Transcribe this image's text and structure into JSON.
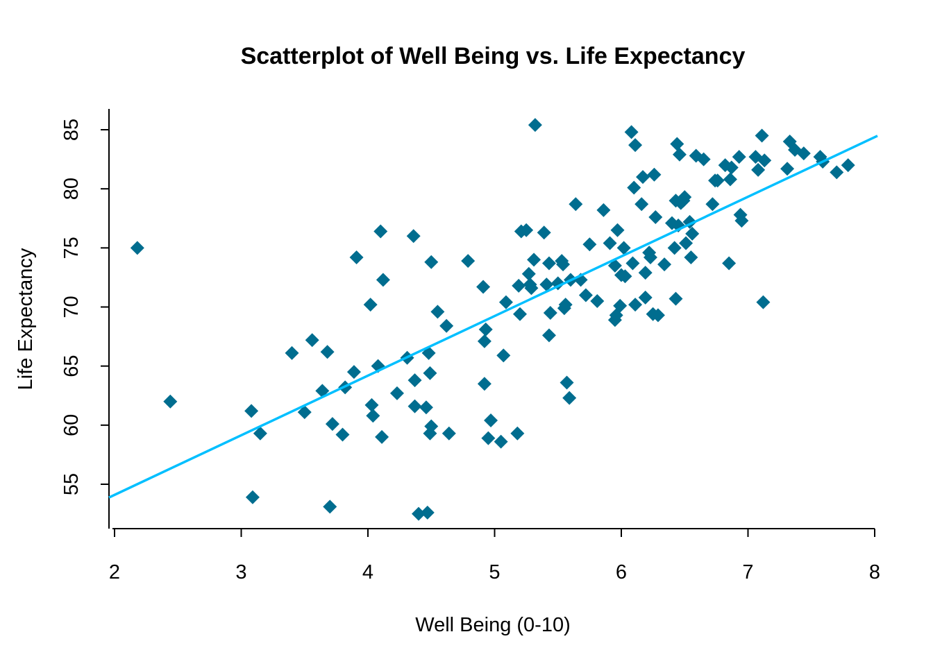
{
  "chart_data": {
    "type": "scatter",
    "title": "Scatterplot of Well Being vs. Life Expectancy",
    "xlabel": "Well Being (0-10)",
    "ylabel": "Life Expectancy",
    "xlim": [
      2,
      8
    ],
    "ylim": [
      51,
      87
    ],
    "xticks": [
      2,
      3,
      4,
      5,
      6,
      7,
      8
    ],
    "yticks": [
      55,
      60,
      65,
      70,
      75,
      80,
      85
    ],
    "grid": false,
    "point_color": "#006d8f",
    "line_color": "#00bfff",
    "regression_line": {
      "x": [
        2,
        8
      ],
      "y": [
        54.1,
        84.6
      ]
    },
    "points": [
      [
        2.18,
        75.0
      ],
      [
        2.44,
        62.0
      ],
      [
        3.08,
        61.2
      ],
      [
        3.09,
        53.9
      ],
      [
        3.15,
        59.3
      ],
      [
        3.4,
        66.1
      ],
      [
        3.5,
        61.1
      ],
      [
        3.56,
        67.2
      ],
      [
        3.64,
        62.9
      ],
      [
        3.68,
        66.2
      ],
      [
        3.7,
        53.1
      ],
      [
        3.72,
        60.1
      ],
      [
        3.8,
        59.2
      ],
      [
        3.82,
        63.2
      ],
      [
        3.89,
        64.5
      ],
      [
        3.91,
        74.2
      ],
      [
        4.02,
        70.2
      ],
      [
        4.03,
        61.7
      ],
      [
        4.04,
        60.8
      ],
      [
        4.08,
        65.0
      ],
      [
        4.1,
        76.4
      ],
      [
        4.11,
        59.0
      ],
      [
        4.12,
        72.3
      ],
      [
        4.23,
        62.7
      ],
      [
        4.31,
        65.7
      ],
      [
        4.36,
        76.0
      ],
      [
        4.37,
        63.8
      ],
      [
        4.37,
        61.6
      ],
      [
        4.4,
        52.5
      ],
      [
        4.46,
        61.5
      ],
      [
        4.47,
        52.6
      ],
      [
        4.48,
        66.1
      ],
      [
        4.49,
        59.3
      ],
      [
        4.49,
        64.4
      ],
      [
        4.5,
        73.8
      ],
      [
        4.5,
        59.9
      ],
      [
        4.55,
        69.6
      ],
      [
        4.62,
        68.4
      ],
      [
        4.64,
        59.3
      ],
      [
        4.79,
        73.9
      ],
      [
        4.91,
        71.7
      ],
      [
        4.92,
        67.1
      ],
      [
        4.92,
        63.5
      ],
      [
        4.93,
        68.1
      ],
      [
        4.95,
        58.9
      ],
      [
        4.97,
        60.4
      ],
      [
        5.05,
        58.6
      ],
      [
        5.07,
        65.9
      ],
      [
        5.09,
        70.4
      ],
      [
        5.18,
        59.3
      ],
      [
        5.19,
        71.8
      ],
      [
        5.2,
        69.4
      ],
      [
        5.21,
        76.4
      ],
      [
        5.25,
        76.5
      ],
      [
        5.27,
        72.8
      ],
      [
        5.28,
        71.9
      ],
      [
        5.29,
        71.6
      ],
      [
        5.31,
        74.0
      ],
      [
        5.32,
        85.4
      ],
      [
        5.39,
        76.3
      ],
      [
        5.41,
        71.9
      ],
      [
        5.43,
        67.6
      ],
      [
        5.43,
        73.7
      ],
      [
        5.44,
        69.5
      ],
      [
        5.5,
        72.0
      ],
      [
        5.53,
        73.9
      ],
      [
        5.54,
        73.6
      ],
      [
        5.55,
        69.9
      ],
      [
        5.56,
        70.2
      ],
      [
        5.57,
        63.6
      ],
      [
        5.59,
        62.3
      ],
      [
        5.6,
        72.3
      ],
      [
        5.64,
        78.7
      ],
      [
        5.68,
        72.3
      ],
      [
        5.72,
        71.0
      ],
      [
        5.75,
        75.3
      ],
      [
        5.81,
        70.5
      ],
      [
        5.86,
        78.2
      ],
      [
        5.91,
        75.4
      ],
      [
        5.95,
        68.9
      ],
      [
        5.95,
        73.5
      ],
      [
        5.96,
        69.3
      ],
      [
        5.97,
        76.5
      ],
      [
        5.99,
        70.1
      ],
      [
        6.0,
        72.7
      ],
      [
        6.02,
        75.0
      ],
      [
        6.03,
        72.6
      ],
      [
        6.08,
        84.8
      ],
      [
        6.09,
        73.7
      ],
      [
        6.1,
        80.1
      ],
      [
        6.11,
        83.7
      ],
      [
        6.11,
        70.2
      ],
      [
        6.16,
        78.7
      ],
      [
        6.17,
        81.0
      ],
      [
        6.19,
        70.8
      ],
      [
        6.19,
        72.9
      ],
      [
        6.22,
        74.6
      ],
      [
        6.23,
        74.2
      ],
      [
        6.25,
        69.4
      ],
      [
        6.26,
        81.2
      ],
      [
        6.27,
        77.6
      ],
      [
        6.29,
        69.3
      ],
      [
        6.34,
        73.6
      ],
      [
        6.4,
        77.1
      ],
      [
        6.42,
        75.0
      ],
      [
        6.43,
        70.7
      ],
      [
        6.43,
        79.0
      ],
      [
        6.44,
        83.8
      ],
      [
        6.45,
        76.9
      ],
      [
        6.46,
        82.9
      ],
      [
        6.47,
        78.8
      ],
      [
        6.49,
        79.0
      ],
      [
        6.5,
        79.3
      ],
      [
        6.51,
        75.4
      ],
      [
        6.54,
        77.2
      ],
      [
        6.55,
        74.2
      ],
      [
        6.56,
        76.2
      ],
      [
        6.59,
        82.8
      ],
      [
        6.65,
        82.5
      ],
      [
        6.72,
        78.7
      ],
      [
        6.74,
        80.7
      ],
      [
        6.76,
        80.7
      ],
      [
        6.82,
        82.0
      ],
      [
        6.85,
        73.7
      ],
      [
        6.86,
        80.8
      ],
      [
        6.87,
        81.8
      ],
      [
        6.93,
        82.7
      ],
      [
        6.94,
        77.8
      ],
      [
        6.95,
        77.3
      ],
      [
        7.06,
        82.7
      ],
      [
        7.08,
        81.6
      ],
      [
        7.11,
        84.5
      ],
      [
        7.12,
        70.4
      ],
      [
        7.13,
        82.4
      ],
      [
        7.31,
        81.7
      ],
      [
        7.33,
        84.0
      ],
      [
        7.37,
        83.3
      ],
      [
        7.44,
        83.0
      ],
      [
        7.57,
        82.7
      ],
      [
        7.59,
        82.3
      ],
      [
        7.7,
        81.4
      ],
      [
        7.79,
        82.0
      ]
    ]
  }
}
